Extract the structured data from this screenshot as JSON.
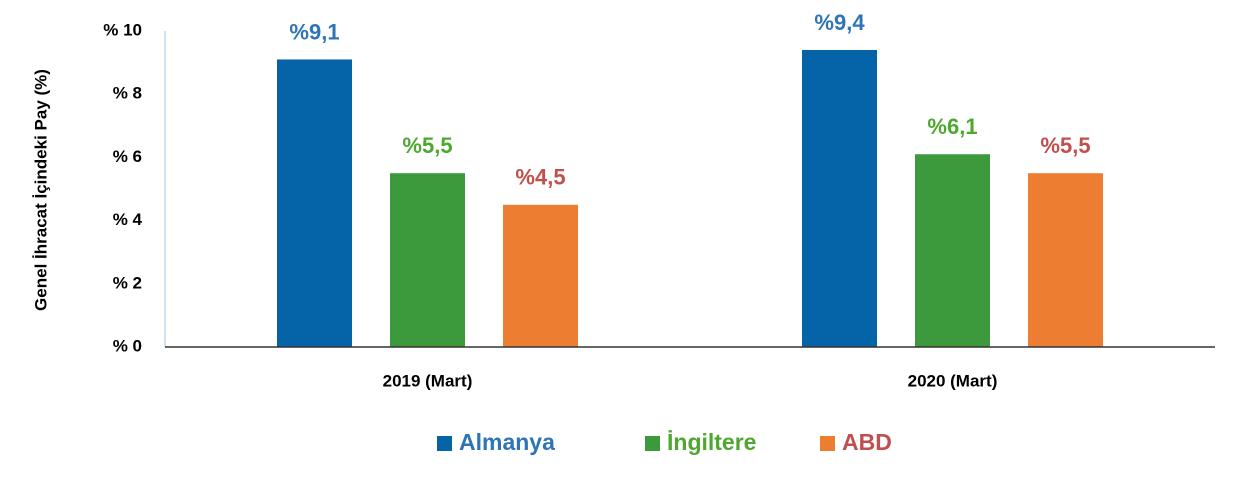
{
  "chart_data": {
    "type": "bar",
    "y_axis_label": "Genel İhracat İçindeki Pay  (%)",
    "categories": [
      "2019 (Mart)",
      "2020 (Mart)"
    ],
    "series": [
      {
        "name": "Almanya",
        "color": "#0563a8",
        "label_color": "#2e75b6",
        "values": [
          9.1,
          9.4
        ],
        "value_labels": [
          "%9,1",
          "%9,4"
        ]
      },
      {
        "name": "İngiltere",
        "color": "#3c9a3c",
        "label_color": "#4ea72e",
        "values": [
          5.5,
          6.1
        ],
        "value_labels": [
          "%5,5",
          "%6,1"
        ]
      },
      {
        "name": "ABD",
        "color": "#ed7d31",
        "label_color": "#c0504d",
        "values": [
          4.5,
          5.5
        ],
        "value_labels": [
          "%4,5",
          "%5,5"
        ]
      }
    ],
    "ylim": [
      0,
      10
    ],
    "yticks": [
      {
        "value": 0,
        "label": "% 0"
      },
      {
        "value": 2,
        "label": "% 2"
      },
      {
        "value": 4,
        "label": "% 4"
      },
      {
        "value": 6,
        "label": "% 6"
      },
      {
        "value": 8,
        "label": "% 8"
      },
      {
        "value": 10,
        "label": "% 10"
      }
    ],
    "grid": false,
    "legend": "bottom"
  }
}
